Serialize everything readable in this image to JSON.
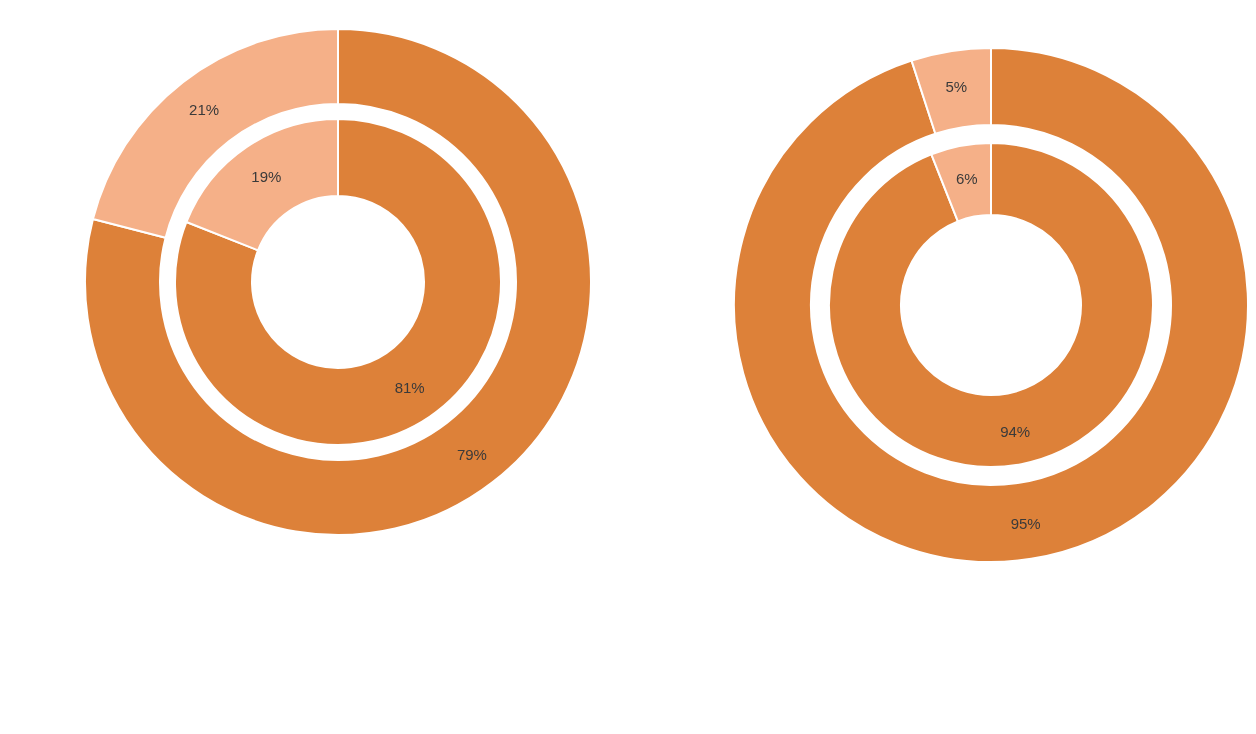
{
  "chart_data": [
    {
      "type": "donut",
      "categories": [
        null,
        null
      ],
      "series": [
        {
          "values": [
            81,
            19
          ],
          "colors": [
            "#dd8139",
            "#f5b088"
          ],
          "value_labels": [
            "81%",
            "19%"
          ]
        },
        {
          "values": [
            79,
            21
          ],
          "colors": [
            "#dd8139",
            "#f5b088"
          ],
          "value_labels": [
            "79%",
            "21%"
          ]
        }
      ]
    },
    {
      "type": "donut",
      "categories": [
        null,
        null
      ],
      "series": [
        {
          "values": [
            94,
            6
          ],
          "colors": [
            "#dd8139",
            "#f5b088"
          ],
          "value_labels": [
            "94%",
            "6%"
          ]
        },
        {
          "values": [
            95,
            5
          ],
          "colors": [
            "#dd8139",
            "#f5b088"
          ],
          "value_labels": [
            "95%",
            "5%"
          ]
        }
      ]
    }
  ]
}
